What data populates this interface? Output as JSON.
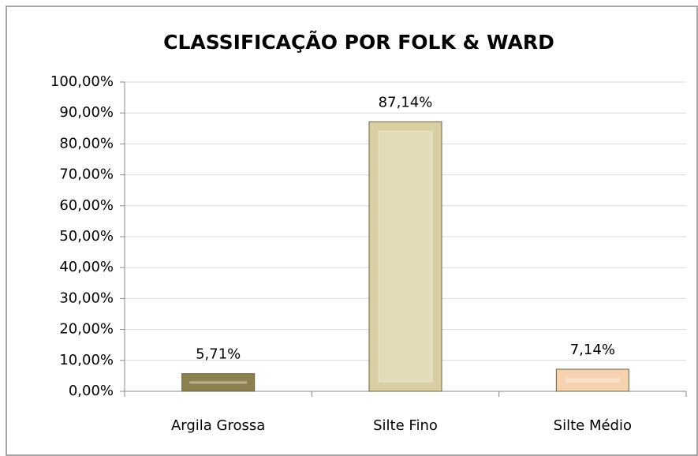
{
  "chart_data": {
    "type": "bar",
    "title": "CLASSIFICAÇÃO POR FOLK & WARD",
    "categories": [
      "Argila Grossa",
      "Silte Fino",
      "Silte Médio"
    ],
    "values": [
      5.71,
      87.14,
      7.14
    ],
    "value_labels": [
      "5,71%",
      "87,14%",
      "7,14%"
    ],
    "colors": [
      "#8c8050",
      "#d8d0a2",
      "#f6d2ae"
    ],
    "ylim": [
      0,
      100
    ],
    "yticks": [
      {
        "value": 0,
        "label": "0,00%"
      },
      {
        "value": 10,
        "label": "10,00%"
      },
      {
        "value": 20,
        "label": "20,00%"
      },
      {
        "value": 30,
        "label": "30,00%"
      },
      {
        "value": 40,
        "label": "40,00%"
      },
      {
        "value": 50,
        "label": "50,00%"
      },
      {
        "value": 60,
        "label": "60,00%"
      },
      {
        "value": 70,
        "label": "70,00%"
      },
      {
        "value": 80,
        "label": "80,00%"
      },
      {
        "value": 90,
        "label": "90,00%"
      },
      {
        "value": 100,
        "label": "100,00%"
      }
    ],
    "grid": true
  }
}
